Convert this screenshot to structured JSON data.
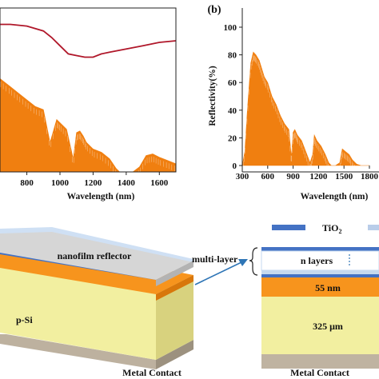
{
  "panel_b_label": "(b)",
  "chart_data": [
    {
      "type": "area",
      "panel": "a",
      "xlabel": "Wavelength (nm)",
      "x_ticks": [
        "600",
        "800",
        "1000",
        "1200",
        "1400",
        "1600"
      ],
      "xlim": [
        300,
        1700
      ],
      "ylim": [
        0,
        100
      ],
      "series": [
        {
          "color": "#f07f10",
          "x": [
            300,
            330,
            360,
            400,
            450,
            500,
            550,
            600,
            650,
            700,
            750,
            800,
            850,
            900,
            940,
            980,
            1000,
            1040,
            1080,
            1100,
            1120,
            1140,
            1160,
            1200,
            1250,
            1300,
            1340,
            1360,
            1400,
            1440,
            1480,
            1520,
            1560,
            1600,
            1650,
            1700
          ],
          "y": [
            66,
            75,
            82,
            78,
            74,
            68,
            62,
            60,
            56,
            52,
            48,
            44,
            40,
            38,
            18,
            32,
            30,
            26,
            8,
            24,
            25,
            22,
            18,
            14,
            12,
            8,
            2,
            0,
            0,
            0,
            3,
            10,
            11,
            9,
            7,
            5
          ]
        },
        {
          "color": "#b0172a",
          "x": [
            300,
            400,
            500,
            600,
            700,
            800,
            900,
            950,
            1000,
            1050,
            1100,
            1150,
            1200,
            1250,
            1300,
            1400,
            1500,
            1600,
            1700
          ],
          "y": [
            92,
            91,
            90,
            90,
            90,
            89,
            86,
            82,
            77,
            72,
            71,
            70,
            70,
            72,
            73,
            75,
            77,
            79,
            80
          ]
        }
      ]
    },
    {
      "type": "area",
      "panel": "b",
      "ylabel": "Reflectivity(%)",
      "xlabel": "Wavelength (nm)",
      "x_ticks": [
        "300",
        "600",
        "900",
        "1200",
        "1500",
        "1800"
      ],
      "y_ticks": [
        "0",
        "20",
        "40",
        "60",
        "80",
        "100"
      ],
      "xlim": [
        300,
        1800
      ],
      "ylim": [
        0,
        100
      ],
      "series": [
        {
          "color": "#f07f10",
          "x": [
            300,
            330,
            360,
            400,
            430,
            460,
            500,
            530,
            560,
            600,
            650,
            700,
            750,
            800,
            850,
            880,
            900,
            920,
            950,
            1000,
            1050,
            1100,
            1130,
            1150,
            1180,
            1230,
            1280,
            1320,
            1350,
            1400,
            1450,
            1480,
            1520,
            1560,
            1600,
            1650,
            1700,
            1750,
            1800
          ],
          "y": [
            0,
            10,
            40,
            74,
            82,
            80,
            76,
            70,
            64,
            60,
            50,
            44,
            36,
            30,
            26,
            6,
            24,
            26,
            22,
            18,
            10,
            2,
            8,
            22,
            18,
            14,
            8,
            2,
            0,
            0,
            2,
            12,
            10,
            8,
            4,
            1,
            0,
            0,
            0
          ]
        }
      ]
    }
  ],
  "diagram": {
    "labels": {
      "nanofilm": "nanofilm reflector",
      "psi": "p-Si",
      "metal_left": "Metal Contact",
      "multilayer": "multi-layer",
      "n_layers": "n layers",
      "thickness_55": "55 nm",
      "thickness_325": "325 μm",
      "metal_right": "Metal Contact"
    },
    "legend": [
      {
        "name": "TiO",
        "sub": "2",
        "color": "#4472c4"
      },
      {
        "name": "",
        "sub": "",
        "color": "#b9cde9"
      }
    ],
    "colors": {
      "reflector": "#d6d6d6",
      "tio2": "#4472c4",
      "low_index": "#c6daf0",
      "orange": "#f7941d",
      "psi": "#f2efa0",
      "metal": "#bfb3a1",
      "arrow": "#2e75b6"
    }
  }
}
